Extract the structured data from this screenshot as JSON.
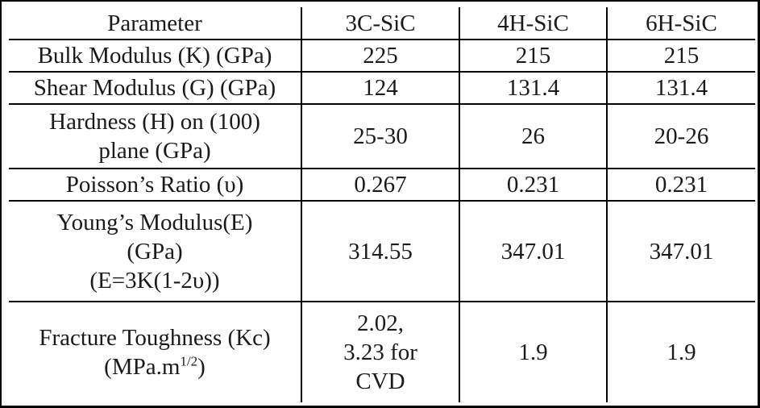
{
  "table": {
    "headers": [
      "Parameter",
      "3C-SiC",
      "4H-SiC",
      "6H-SiC"
    ],
    "rows": [
      {
        "parameter": "Bulk Modulus (K) (GPa)",
        "values": [
          "225",
          "215",
          "215"
        ]
      },
      {
        "parameter": "Shear Modulus (G) (GPa)",
        "values": [
          "124",
          "131.4",
          "131.4"
        ]
      },
      {
        "parameter": "Hardness (H) on (100)\nplane (GPa)",
        "values": [
          "25-30",
          "26",
          "20-26"
        ]
      },
      {
        "parameter": "Poisson’s Ratio (υ)",
        "values": [
          "0.267",
          "0.231",
          "0.231"
        ]
      },
      {
        "parameter": "Young’s Modulus(E)\n(GPa)\n(E=3K(1-2υ))",
        "values": [
          "314.55",
          "347.01",
          "347.01"
        ]
      },
      {
        "parameter_line1": "Fracture Toughness (Kc)",
        "parameter_line2_prefix": "(MPa.m",
        "parameter_line2_exponent": "1/2",
        "parameter_line2_suffix": ")",
        "values": [
          "2.02,\n3.23 for\nCVD",
          "1.9",
          "1.9"
        ]
      }
    ]
  }
}
